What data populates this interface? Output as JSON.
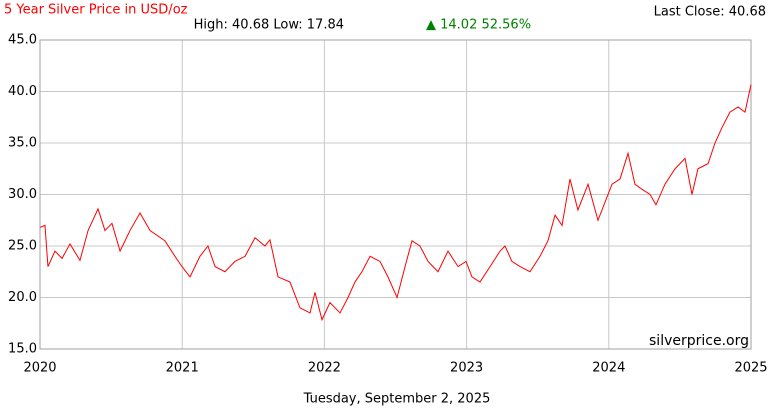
{
  "chart_data": {
    "type": "line",
    "title": "5 Year Silver Price in USD/oz",
    "last_close": "Last Close: 40.68",
    "stats": "High: 40.68 Low: 17.84",
    "change": "▲ 14.02 52.56%",
    "watermark": "silverprice.org",
    "date": "Tuesday, September 2, 2025",
    "grid": true,
    "color": "#ff0000",
    "xlim": [
      2020,
      2025
    ],
    "xticks": [
      2020,
      2021,
      2022,
      2023,
      2024,
      2025
    ],
    "ylim": [
      15,
      45
    ],
    "yticks": [
      {
        "value": 15,
        "label": "15.0"
      },
      {
        "value": 20,
        "label": "20.0"
      },
      {
        "value": 25,
        "label": "25.0"
      },
      {
        "value": 30,
        "label": "30.0"
      },
      {
        "value": 35,
        "label": "35.0"
      },
      {
        "value": 40,
        "label": "40.0"
      },
      {
        "value": 45,
        "label": "45.0"
      }
    ],
    "x": [
      2020.0,
      2020.035,
      2020.056,
      2020.105,
      2020.155,
      2020.211,
      2020.281,
      2020.338,
      2020.408,
      2020.457,
      2020.506,
      2020.563,
      2020.633,
      2020.703,
      2020.774,
      2020.879,
      2020.949,
      2020.999,
      2021.055,
      2021.125,
      2021.181,
      2021.231,
      2021.301,
      2021.371,
      2021.442,
      2021.512,
      2021.582,
      2021.617,
      2021.674,
      2021.758,
      2021.828,
      2021.899,
      2021.934,
      2021.983,
      2022.039,
      2022.11,
      2022.166,
      2022.215,
      2022.264,
      2022.321,
      2022.391,
      2022.447,
      2022.511,
      2022.567,
      2022.616,
      2022.672,
      2022.729,
      2022.799,
      2022.869,
      2022.94,
      2022.996,
      2023.038,
      2023.094,
      2023.165,
      2023.235,
      2023.27,
      2023.319,
      2023.376,
      2023.446,
      2023.516,
      2023.572,
      2023.622,
      2023.671,
      2023.727,
      2023.783,
      2023.854,
      2023.924,
      2023.98,
      2024.023,
      2024.079,
      2024.135,
      2024.184,
      2024.234,
      2024.29,
      2024.332,
      2024.395,
      2024.466,
      2024.536,
      2024.585,
      2024.627,
      2024.698,
      2024.747,
      2024.796,
      2024.852,
      2024.909,
      2024.958,
      2025.0
    ],
    "values": [
      26.8,
      27.0,
      23.0,
      24.5,
      23.8,
      25.2,
      23.6,
      26.5,
      28.6,
      26.5,
      27.2,
      24.5,
      26.5,
      28.2,
      26.5,
      25.5,
      24.0,
      23.0,
      22.0,
      24.0,
      25.0,
      23.0,
      22.5,
      23.5,
      24.0,
      25.8,
      25.0,
      25.6,
      22.0,
      21.5,
      19.0,
      18.5,
      20.5,
      17.84,
      19.5,
      18.5,
      20.0,
      21.5,
      22.5,
      24.0,
      23.5,
      22.0,
      20.0,
      23.0,
      25.5,
      25.0,
      23.5,
      22.5,
      24.5,
      23.0,
      23.5,
      22.0,
      21.5,
      23.0,
      24.5,
      25.0,
      23.5,
      23.0,
      22.5,
      24.0,
      25.5,
      28.0,
      27.0,
      31.5,
      28.5,
      31.0,
      27.5,
      29.5,
      31.0,
      31.5,
      34.0,
      31.0,
      30.5,
      30.0,
      29.0,
      31.0,
      32.5,
      33.5,
      30.0,
      32.5,
      33.0,
      35.0,
      36.5,
      38.0,
      38.5,
      38.0,
      40.68
    ]
  }
}
